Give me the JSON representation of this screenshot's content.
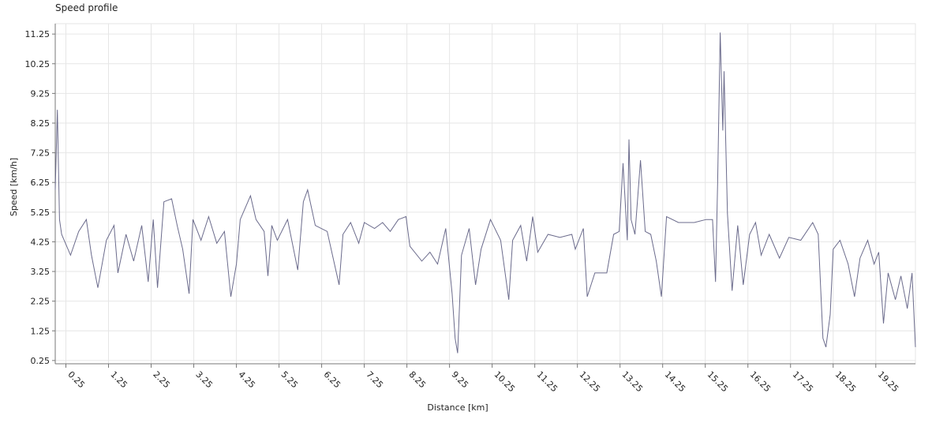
{
  "chart_data": {
    "type": "line",
    "title": "Speed profile",
    "x_label": "Distance [km]",
    "y_label": "Speed [km/h]",
    "x": [
      0,
      0.05,
      0.1,
      0.15,
      0.36,
      0.55,
      0.73,
      0.85,
      1.0,
      1.2,
      1.38,
      1.47,
      1.66,
      1.84,
      2.03,
      2.18,
      2.3,
      2.4,
      2.55,
      2.73,
      2.86,
      2.99,
      3.14,
      3.23,
      3.42,
      3.6,
      3.79,
      3.97,
      4.12,
      4.25,
      4.34,
      4.58,
      4.71,
      4.9,
      4.99,
      5.08,
      5.21,
      5.45,
      5.69,
      5.82,
      5.92,
      6.1,
      6.38,
      6.66,
      6.75,
      6.93,
      7.12,
      7.25,
      7.49,
      7.68,
      7.86,
      8.05,
      8.23,
      8.32,
      8.6,
      8.79,
      8.97,
      9.16,
      9.31,
      9.38,
      9.44,
      9.53,
      9.71,
      9.86,
      9.99,
      10.21,
      10.45,
      10.64,
      10.73,
      10.92,
      11.06,
      11.2,
      11.32,
      11.56,
      11.84,
      12.12,
      12.2,
      12.39,
      12.48,
      12.66,
      12.94,
      13.1,
      13.23,
      13.32,
      13.42,
      13.46,
      13.51,
      13.6,
      13.73,
      13.84,
      13.97,
      14.1,
      14.22,
      14.34,
      14.62,
      14.99,
      15.27,
      15.42,
      15.49,
      15.54,
      15.6,
      15.66,
      15.69,
      15.77,
      15.88,
      16.01,
      16.14,
      16.29,
      16.43,
      16.56,
      16.75,
      16.99,
      17.21,
      17.49,
      17.77,
      17.9,
      18.01,
      18.08,
      18.18,
      18.25,
      18.41,
      18.6,
      18.75,
      18.88,
      19.06,
      19.21,
      19.32,
      19.43,
      19.54,
      19.71,
      19.84,
      19.99,
      20.1,
      20.18
    ],
    "series": [
      {
        "name": "Speed",
        "color": "#6b6b8c",
        "values": [
          6.0,
          8.7,
          5.0,
          4.5,
          3.8,
          4.6,
          5.0,
          3.8,
          2.7,
          4.3,
          4.8,
          3.2,
          4.5,
          3.6,
          4.8,
          2.9,
          5.0,
          2.7,
          5.6,
          5.7,
          4.8,
          4.0,
          2.5,
          5.0,
          4.3,
          5.1,
          4.2,
          4.6,
          2.4,
          3.5,
          5.0,
          5.8,
          5.0,
          4.6,
          3.1,
          4.8,
          4.3,
          5.0,
          3.3,
          5.6,
          6.0,
          4.8,
          4.6,
          2.8,
          4.5,
          4.9,
          4.2,
          4.9,
          4.7,
          4.9,
          4.6,
          5.0,
          5.1,
          4.1,
          3.6,
          3.9,
          3.5,
          4.7,
          2.5,
          1.0,
          0.5,
          3.8,
          4.7,
          2.8,
          4.0,
          5.0,
          4.3,
          2.3,
          4.3,
          4.8,
          3.6,
          5.1,
          3.9,
          4.5,
          4.4,
          4.5,
          4.0,
          4.7,
          2.4,
          3.2,
          3.2,
          4.5,
          4.6,
          6.9,
          4.3,
          7.7,
          5.0,
          4.5,
          7.0,
          4.6,
          4.5,
          3.6,
          2.4,
          5.1,
          4.9,
          4.9,
          5.0,
          5.0,
          2.9,
          6.3,
          11.3,
          8.0,
          10.0,
          5.2,
          2.6,
          4.8,
          2.8,
          4.5,
          4.9,
          3.8,
          4.5,
          3.7,
          4.4,
          4.3,
          4.9,
          4.5,
          1.0,
          0.7,
          1.8,
          4.0,
          4.3,
          3.5,
          2.4,
          3.7,
          4.3,
          3.5,
          3.9,
          1.5,
          3.2,
          2.3,
          3.1,
          2.0,
          3.2,
          0.7
        ]
      }
    ],
    "xlim": [
      0,
      20.18
    ],
    "ylim": [
      0.14,
      11.6
    ],
    "xticks": [
      0.25,
      1.25,
      2.25,
      3.25,
      4.25,
      5.25,
      6.25,
      7.25,
      8.25,
      9.25,
      10.25,
      11.25,
      12.25,
      13.25,
      14.25,
      15.25,
      16.25,
      17.25,
      18.25,
      19.25
    ],
    "yticks": [
      0.25,
      1.25,
      2.25,
      3.25,
      4.25,
      5.25,
      6.25,
      7.25,
      8.25,
      9.25,
      10.25,
      11.25
    ],
    "grid": true
  }
}
